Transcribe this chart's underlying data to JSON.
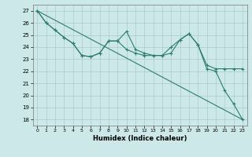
{
  "xlabel": "Humidex (Indice chaleur)",
  "background_color": "#cce8e8",
  "grid_color": "#aacccc",
  "line_color": "#2e7d6e",
  "xlim": [
    -0.5,
    23.5
  ],
  "ylim": [
    17.5,
    27.5
  ],
  "xticks": [
    0,
    1,
    2,
    3,
    4,
    5,
    6,
    7,
    8,
    9,
    10,
    11,
    12,
    13,
    14,
    15,
    16,
    17,
    18,
    19,
    20,
    21,
    22,
    23
  ],
  "yticks": [
    18,
    19,
    20,
    21,
    22,
    23,
    24,
    25,
    26,
    27
  ],
  "line1_x": [
    0,
    1,
    2,
    3,
    4,
    5,
    6,
    7,
    8,
    9,
    10,
    11,
    12,
    13,
    14,
    15,
    16,
    17,
    18,
    19,
    20,
    21,
    22,
    23
  ],
  "line1_y": [
    27.0,
    26.0,
    25.4,
    24.8,
    24.3,
    23.3,
    23.2,
    23.5,
    24.5,
    24.5,
    25.3,
    23.8,
    23.5,
    23.3,
    23.3,
    23.5,
    24.6,
    25.1,
    24.2,
    22.5,
    22.2,
    22.2,
    22.2,
    22.2
  ],
  "line2_x": [
    0,
    1,
    2,
    3,
    4,
    5,
    6,
    7,
    8,
    9,
    10,
    11,
    12,
    13,
    14,
    15,
    16,
    17,
    18,
    19,
    20,
    21,
    22,
    23
  ],
  "line2_y": [
    27.0,
    26.0,
    25.4,
    24.8,
    24.3,
    23.3,
    23.2,
    23.5,
    24.5,
    24.5,
    23.8,
    23.5,
    23.3,
    23.3,
    23.3,
    24.0,
    24.6,
    25.1,
    24.2,
    22.2,
    22.0,
    20.4,
    19.3,
    18.0
  ],
  "line3_x": [
    0,
    23
  ],
  "line3_y": [
    27.0,
    18.0
  ]
}
